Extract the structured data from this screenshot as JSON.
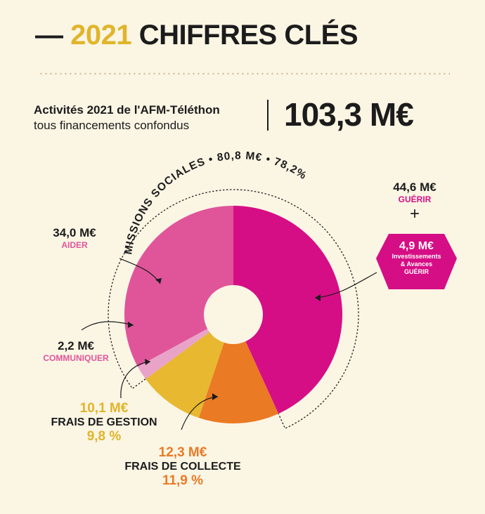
{
  "header": {
    "dash": "—",
    "year": "2021",
    "title": "CHIFFRES CLÉS",
    "subtitle_line1": "Activités 2021 de l'AFM-Téléthon",
    "subtitle_line2": "tous financements confondus",
    "total": "103,3 M€"
  },
  "colors": {
    "aider": "#e0559a",
    "guerir": "#d60e85",
    "communiquer": "#e9a3c8",
    "gestion": "#e7b830",
    "collecte": "#ea7a24",
    "background": "#fbf5e4"
  },
  "labels": {
    "missions": "MISSIONS SOCIALES • 80,8 M€ • 78,2%",
    "aider_value": "34,0 M€",
    "aider_name": "AIDER",
    "communiquer_value": "2,2 M€",
    "communiquer_name": "COMMUNIQUER",
    "gestion_value": "10,1 M€",
    "gestion_name": "FRAIS DE GESTION",
    "gestion_pct": "9,8 %",
    "collecte_value": "12,3 M€",
    "collecte_name": "FRAIS DE COLLECTE",
    "collecte_pct": "11,9 %",
    "guerir_value": "44,6 M€",
    "guerir_name": "GUÉRIR",
    "plus": "+",
    "invest_value": "4,9 M€",
    "invest_line1": "Investissements",
    "invest_line2": "& Avances",
    "invest_line3": "GUÉRIR"
  },
  "chart_data": {
    "type": "pie",
    "donut": true,
    "unit": "M€",
    "categories": [
      "GUÉRIR",
      "FRAIS DE COLLECTE",
      "FRAIS DE GESTION",
      "COMMUNIQUER",
      "AIDER"
    ],
    "values": [
      44.6,
      12.3,
      10.1,
      2.2,
      34.0
    ],
    "percents": [
      null,
      11.9,
      9.8,
      null,
      null
    ],
    "colors": [
      "#d60e85",
      "#ea7a24",
      "#e7b830",
      "#e9a3c8",
      "#e0559a"
    ],
    "group": {
      "name": "MISSIONS SOCIALES",
      "value": 80.8,
      "percent": 78.2,
      "members": [
        "GUÉRIR",
        "COMMUNIQUER",
        "AIDER"
      ]
    },
    "extra": {
      "value": 4.9,
      "label": "Investissements & Avances GUÉRIR"
    },
    "total": 103.3
  }
}
